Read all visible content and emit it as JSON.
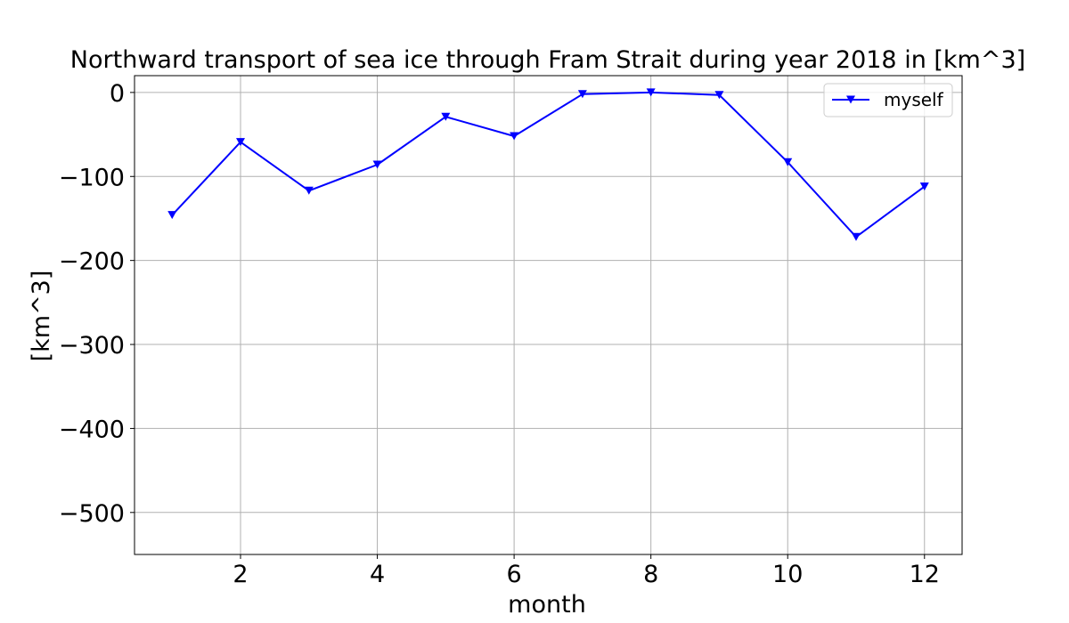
{
  "chart_data": {
    "type": "line",
    "title": "Northward transport of sea ice through Fram Strait during year 2018 in [km^3]",
    "xlabel": "month",
    "ylabel": "[km^3]",
    "x": [
      1,
      2,
      3,
      4,
      5,
      6,
      7,
      8,
      9,
      10,
      11,
      12
    ],
    "series": [
      {
        "name": "myself",
        "color": "#0000ff",
        "marker": "triangle-down",
        "values": [
          -146,
          -59,
          -117,
          -86,
          -29,
          -52,
          -2,
          0,
          -3,
          -83,
          -172,
          -112
        ]
      }
    ],
    "xlim": [
      0.45,
      12.55
    ],
    "ylim": [
      -550,
      20
    ],
    "xticks": [
      2,
      4,
      6,
      8,
      10,
      12
    ],
    "xtick_labels": [
      "2",
      "4",
      "6",
      "8",
      "10",
      "12"
    ],
    "yticks": [
      0,
      -100,
      -200,
      -300,
      -400,
      -500
    ],
    "ytick_labels": [
      "0",
      "−100",
      "−200",
      "−300",
      "−400",
      "−500"
    ],
    "grid": true,
    "legend_position": "upper right"
  }
}
